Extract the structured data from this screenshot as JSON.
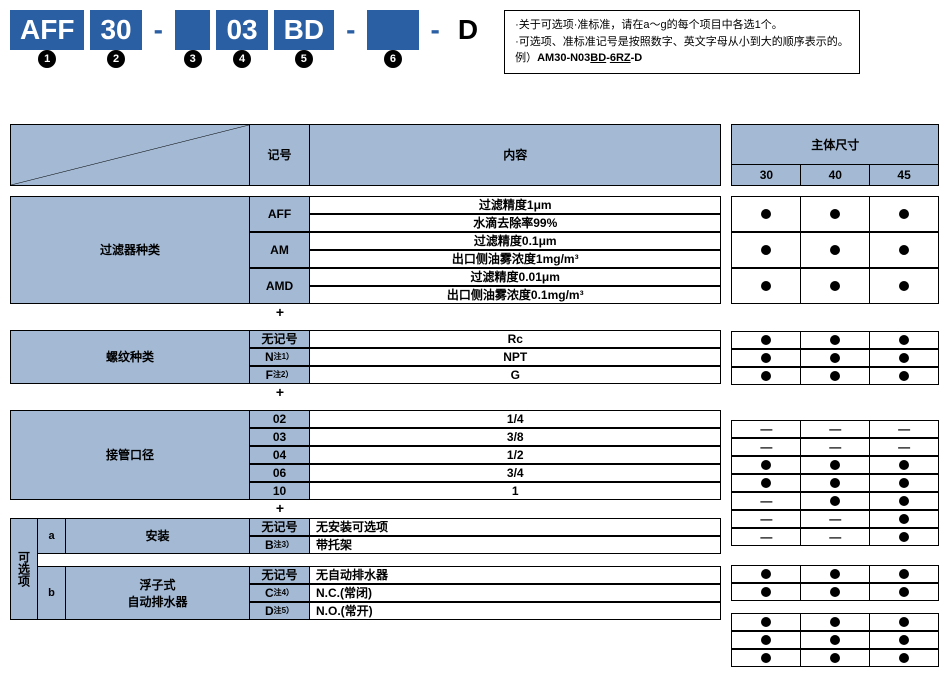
{
  "partNumber": {
    "blocks": [
      {
        "text": "AFF",
        "style": "blue",
        "num": "1"
      },
      {
        "text": "30",
        "style": "blue",
        "num": "2"
      },
      {
        "text": "-",
        "style": "plain"
      },
      {
        "text": " ",
        "style": "blue",
        "num": "3"
      },
      {
        "text": "03",
        "style": "blue",
        "num": "4"
      },
      {
        "text": "BD",
        "style": "blue",
        "num": "5"
      },
      {
        "text": "-",
        "style": "plain"
      },
      {
        "text": "   ",
        "style": "blue",
        "num": "6"
      },
      {
        "text": "-",
        "style": "plain"
      },
      {
        "text": "D",
        "style": "plain-big"
      }
    ]
  },
  "noteBox": {
    "line1": "·关于可选项·准标准，请在a～g的每个项目中各选1个。",
    "line2": "·可选项、准标准记号是按照数字、英文字母从小到大的顺序表示的。",
    "line3": "例）",
    "example": "AM30-N03BD-6RZ-D",
    "underline1": "BD",
    "underline2": "6RZ"
  },
  "headers": {
    "kigo": "记号",
    "naiyou": "内容",
    "bodySize": "主体尺寸",
    "sizes": [
      "30",
      "40",
      "45"
    ]
  },
  "sections": [
    {
      "label": "过滤器种类",
      "labelWidth": 240,
      "rows": [
        {
          "kigo": "AFF",
          "tall": true,
          "contents": [
            "过滤精度1μm",
            "水滴去除率99%"
          ],
          "marks": [
            "dot",
            "dot",
            "dot"
          ]
        },
        {
          "kigo": "AM",
          "tall": true,
          "contents": [
            "过滤精度0.1μm",
            "出口侧油雾浓度1mg/m³"
          ],
          "marks": [
            "dot",
            "dot",
            "dot"
          ]
        },
        {
          "kigo": "AMD",
          "tall": true,
          "contents": [
            "过滤精度0.01μm",
            "出口侧油雾浓度0.1mg/m³"
          ],
          "marks": [
            "dot",
            "dot",
            "dot"
          ]
        }
      ],
      "plus": true
    },
    {
      "label": "螺纹种类",
      "labelWidth": 240,
      "rows": [
        {
          "kigo": "无记号",
          "contents": [
            "Rc"
          ],
          "marks": [
            "dot",
            "dot",
            "dot"
          ]
        },
        {
          "kigo": "N",
          "note": "注1）",
          "contents": [
            "NPT"
          ],
          "marks": [
            "dot",
            "dot",
            "dot"
          ]
        },
        {
          "kigo": "F",
          "note": "注2）",
          "contents": [
            "G"
          ],
          "marks": [
            "dot",
            "dot",
            "dot"
          ]
        }
      ],
      "plus": true
    },
    {
      "label": "接管口径",
      "labelWidth": 240,
      "preRow": {
        "marks": [
          "—",
          "—",
          "—"
        ]
      },
      "rows": [
        {
          "kigo": "02",
          "contents": [
            "1/4"
          ],
          "marks": [
            "dot",
            "dot",
            "dot"
          ]
        },
        {
          "kigo": "03",
          "contents": [
            "3/8"
          ],
          "marks": [
            "dot",
            "dot",
            "dot"
          ]
        },
        {
          "kigo": "04",
          "contents": [
            "1/2"
          ],
          "marks": [
            "—",
            "dot",
            "dot"
          ]
        },
        {
          "kigo": "06",
          "contents": [
            "3/4"
          ],
          "marks": [
            "—",
            "—",
            "dot"
          ]
        },
        {
          "kigo": "10",
          "contents": [
            "1"
          ],
          "marks": [
            "—",
            "—",
            "dot"
          ]
        }
      ],
      "plus": true
    }
  ],
  "optionSection": {
    "vertLabel": "可选项",
    "groups": [
      {
        "tag": "a",
        "label": "安装",
        "rows": [
          {
            "kigo": "无记号",
            "contents": [
              "无安装可选项"
            ],
            "left": true,
            "marks": [
              "dot",
              "dot",
              "dot"
            ]
          },
          {
            "kigo": "B",
            "note": "注3）",
            "contents": [
              "带托架"
            ],
            "left": true,
            "marks": [
              "dot",
              "dot",
              "dot"
            ]
          }
        ]
      },
      {
        "tag": "b",
        "label": "浮子式自动排水器",
        "rows": [
          {
            "kigo": "无记号",
            "contents": [
              "无自动排水器"
            ],
            "left": true,
            "marks": [
              "dot",
              "dot",
              "dot"
            ]
          },
          {
            "kigo": "C",
            "note": "注4）",
            "contents": [
              "N.C.(常闭)"
            ],
            "left": true,
            "marks": [
              "dot",
              "dot",
              "dot"
            ]
          },
          {
            "kigo": "D",
            "note": "注5）",
            "contents": [
              "N.O.(常开)"
            ],
            "left": true,
            "marks": [
              "dot",
              "dot",
              "dot"
            ]
          }
        ]
      }
    ]
  }
}
